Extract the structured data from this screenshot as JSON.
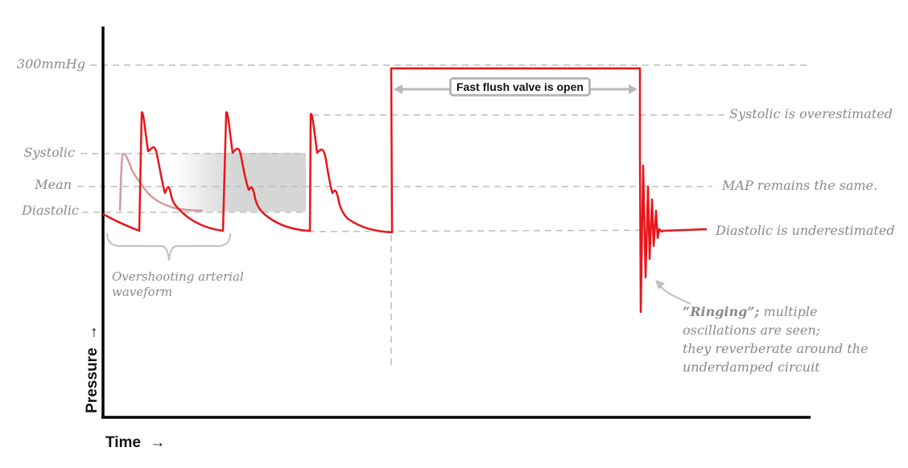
{
  "axes": {
    "y_title": "Pressure",
    "x_title": "Time",
    "arrow": "→"
  },
  "levels": {
    "top": "300mmHg",
    "systolic": "Systolic",
    "mean": "Mean",
    "diastolic": "Diastolic"
  },
  "annotations": {
    "flush": "Fast flush valve is open",
    "systolic_over": "Systolic  is overestimated",
    "map_same": "MAP remains the same.",
    "diastolic_under": "Diastolic is underestimated",
    "overshoot_line1": "Overshooting arterial",
    "overshoot_line2": "waveform",
    "ringing_title": "“Ringing”;",
    "ringing_line1": "  multiple",
    "ringing_line2": "oscillations are seen;",
    "ringing_line3": "they reverberate around the",
    "ringing_line4": "underdamped circuit"
  },
  "colors": {
    "waveform": "#e8161b",
    "reference_waveform": "#d49a9a",
    "guides": "#bdbdbd",
    "shade": "#d6d6d6",
    "axis": "#000000"
  }
}
